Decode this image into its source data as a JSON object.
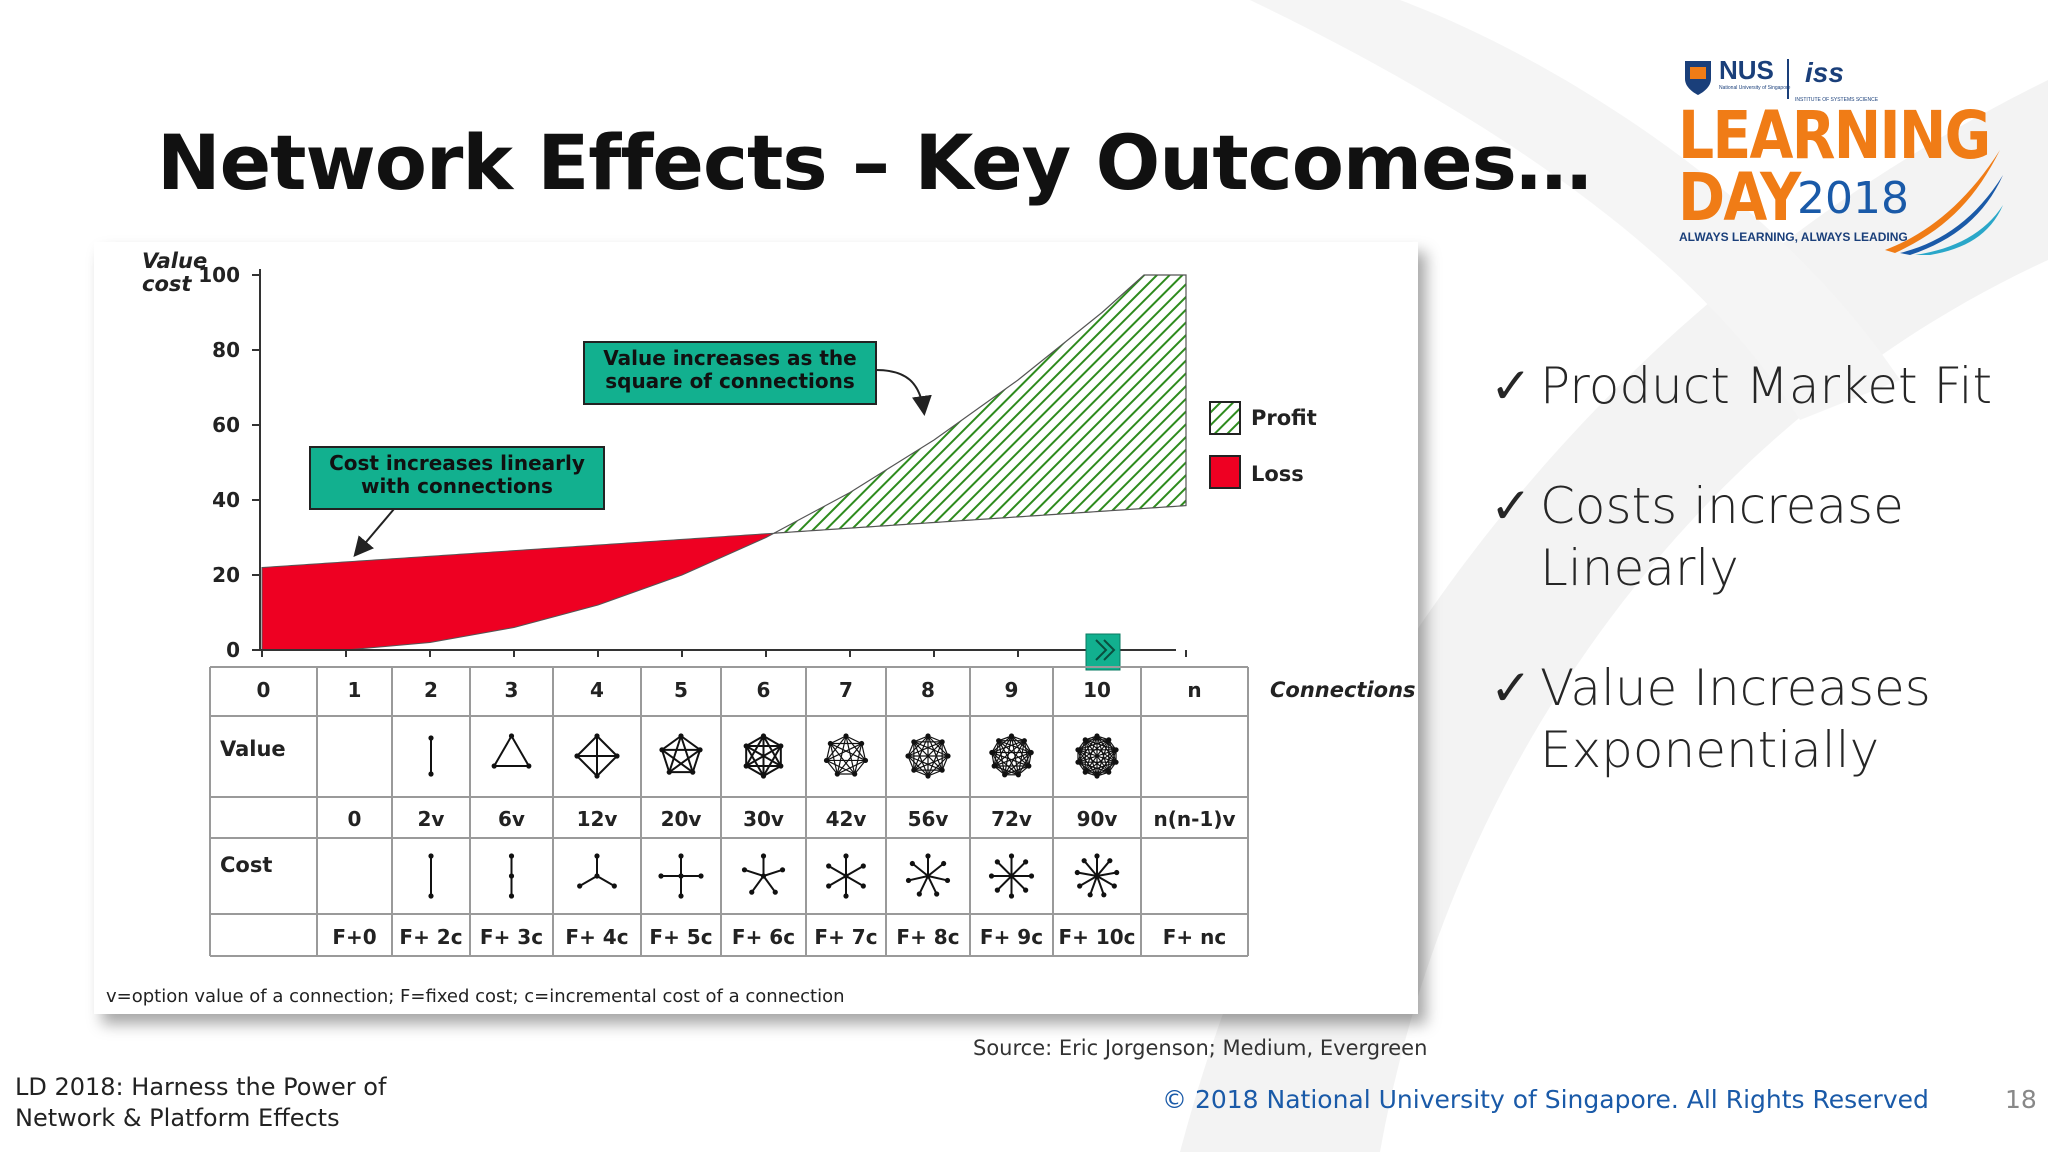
{
  "slide": {
    "title": "Network Effects – Key Outcomes…",
    "bullets": [
      {
        "check": "✓",
        "text": "Product Market Fit"
      },
      {
        "check": "✓",
        "text": "Costs increase Linearly"
      },
      {
        "check": "✓",
        "text": "Value Increases Exponentially"
      }
    ],
    "source": "Source: Eric Jorgenson; Medium, Evergreen",
    "footer_left_1": "LD 2018: Harness the Power of",
    "footer_left_2": "Network & Platform Effects",
    "copyright": "© 2018 National University of Singapore. All Rights Reserved",
    "page_number": "18"
  },
  "logo": {
    "nus": "NUS",
    "nus_sub": "National University of Singapore",
    "iss": "iss",
    "iss_sub": "INSTITUTE OF SYSTEMS SCIENCE",
    "line1": "LEARNING",
    "line2": "DAY",
    "year": "2018",
    "tagline": "ALWAYS LEARNING, ALWAYS LEADING",
    "orange": "#f07c16",
    "navy": "#1a3f7a"
  },
  "chart_data": {
    "type": "area",
    "ylabel_1": "Value",
    "ylabel_2": "cost",
    "xlabel": "Connections",
    "ylim": [
      0,
      100
    ],
    "yticks": [
      0,
      20,
      40,
      60,
      80,
      100
    ],
    "x": [
      0,
      1,
      2,
      3,
      4,
      5,
      6,
      7,
      8,
      9,
      10,
      11
    ],
    "series": [
      {
        "name": "Profit",
        "color": "#2e8b1e",
        "pattern": "diagonal-hatch"
      },
      {
        "name": "Loss",
        "color": "#ee0022"
      }
    ],
    "value_curve": [
      0,
      0,
      2,
      6,
      12,
      20,
      30,
      42,
      56,
      72,
      90,
      110
    ],
    "cost_line": [
      22,
      23.5,
      25,
      26.5,
      28,
      29.5,
      31,
      32.5,
      34,
      35.5,
      37,
      38.5
    ],
    "annotations": [
      {
        "text_1": "Value increases as the",
        "text_2": "square of connections"
      },
      {
        "text_1": "Cost increases linearly",
        "text_2": "with connections"
      }
    ],
    "table": {
      "columns": [
        "0",
        "1",
        "2",
        "3",
        "4",
        "5",
        "6",
        "7",
        "8",
        "9",
        "10",
        "n"
      ],
      "row_value_label": "Value",
      "value_formulas": [
        "",
        "0",
        "2v",
        "6v",
        "12v",
        "20v",
        "30v",
        "42v",
        "56v",
        "72v",
        "90v",
        "n(n-1)v"
      ],
      "row_cost_label": "Cost",
      "cost_formulas": [
        "",
        "F+0",
        "F+ 2c",
        "F+ 3c",
        "F+ 4c",
        "F+ 5c",
        "F+ 6c",
        "F+ 7c",
        "F+ 8c",
        "F+ 9c",
        "F+ 10c",
        "F+ nc"
      ],
      "node_counts": [
        0,
        1,
        2,
        3,
        4,
        5,
        6,
        7,
        8,
        9,
        10,
        0
      ]
    },
    "footnote": "v=option value of a connection; F=fixed cost; c=incremental cost of a connection"
  }
}
